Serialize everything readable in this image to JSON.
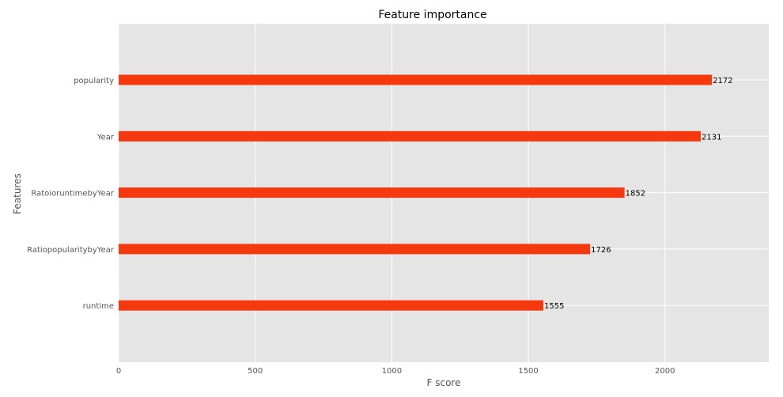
{
  "chart_data": {
    "type": "bar",
    "orientation": "horizontal",
    "title": "Feature importance",
    "xlabel": "F score",
    "ylabel": "Features",
    "categories": [
      "popularity",
      "Year",
      "RatoioruntimebyYear",
      "RatiopopularitybyYear",
      "runtime"
    ],
    "values": [
      2172,
      2131,
      1852,
      1726,
      1555
    ],
    "value_labels": [
      "2172",
      "2131",
      "1852",
      "1726",
      "1555"
    ],
    "xlim": [
      0,
      2380
    ],
    "xticks": [
      0,
      500,
      1000,
      1500,
      2000
    ],
    "xtick_labels": [
      "0",
      "500",
      "1000",
      "1500",
      "2000"
    ],
    "grid": true,
    "colors": {
      "bar": "#f5380d",
      "plot_background": "#e5e5e5",
      "grid": "#ffffff",
      "page_background": "#ffffff"
    }
  }
}
